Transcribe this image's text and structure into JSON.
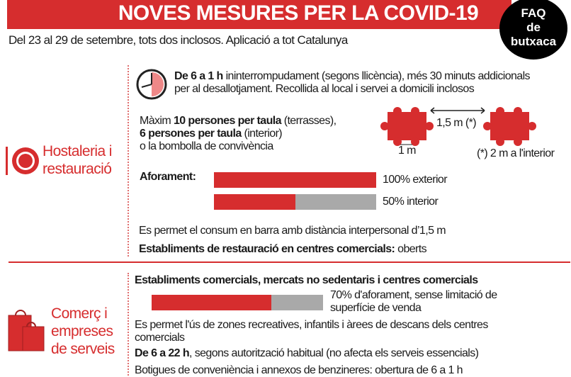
{
  "header": {
    "title": "NOVES MESURES PER LA COVID-19",
    "subtitle": "Del 23 al 29 de setembre, tots dos inclosos. Aplicació a tot Catalunya",
    "faq_line1": "FAQ",
    "faq_line2": "de",
    "faq_line3": "butxaca"
  },
  "colors": {
    "accent": "#d62d2e",
    "gray": "#a9a9a9"
  },
  "hostaleria": {
    "title_line1": "Hostaleria i",
    "title_line2": "restauració",
    "hours_bold": "De 6 a 1 h",
    "hours_text": " ininterrompudament (segons  llicència), més 30 minuts addicionals per al desallotjament. Recollida al local i servei a domicili inclosos",
    "max_prefix": "Màxim ",
    "max_bold1": "10 persones per taula",
    "max_text1": " (terrasses),",
    "max_bold2": "6 persones per taula",
    "max_text2": " (interior)",
    "max_text3": "o la bombolla de convivència",
    "dist_tables": "1,5 m (*)",
    "dist_chairs": "1 m",
    "note": "(*) 2 m a l'interior",
    "aforament_label": "Aforament:",
    "bars": [
      {
        "label": "100% exterior",
        "percent": 100
      },
      {
        "label": "50% interior",
        "percent": 50
      }
    ],
    "barra": "Es permet el consum en barra amb distància interpersonal d’1,5 m",
    "centres": "Establiments de restauració en centres comercials:",
    "centres_value": " oberts"
  },
  "comerc": {
    "title_line1": "Comerç i",
    "title_line2": "empreses",
    "title_line3": "de serveis",
    "heading": "Establiments comercials, mercats no sedentaris i centres comercials",
    "bar": {
      "percent": 70,
      "label": "70% d'aforament, sense limitació de superfície de venda"
    },
    "zones": "Es permet l'ús de zones recreatives, infantils i àrees de descans dels centres comercials",
    "hours_bold": "De 6 a 22 h",
    "hours_text": ", segons autorització habitual (no afecta els serveis essencials)",
    "botigues": "Botigues de conveniència i annexos de benzineres: obertura de 6 a 1 h"
  }
}
